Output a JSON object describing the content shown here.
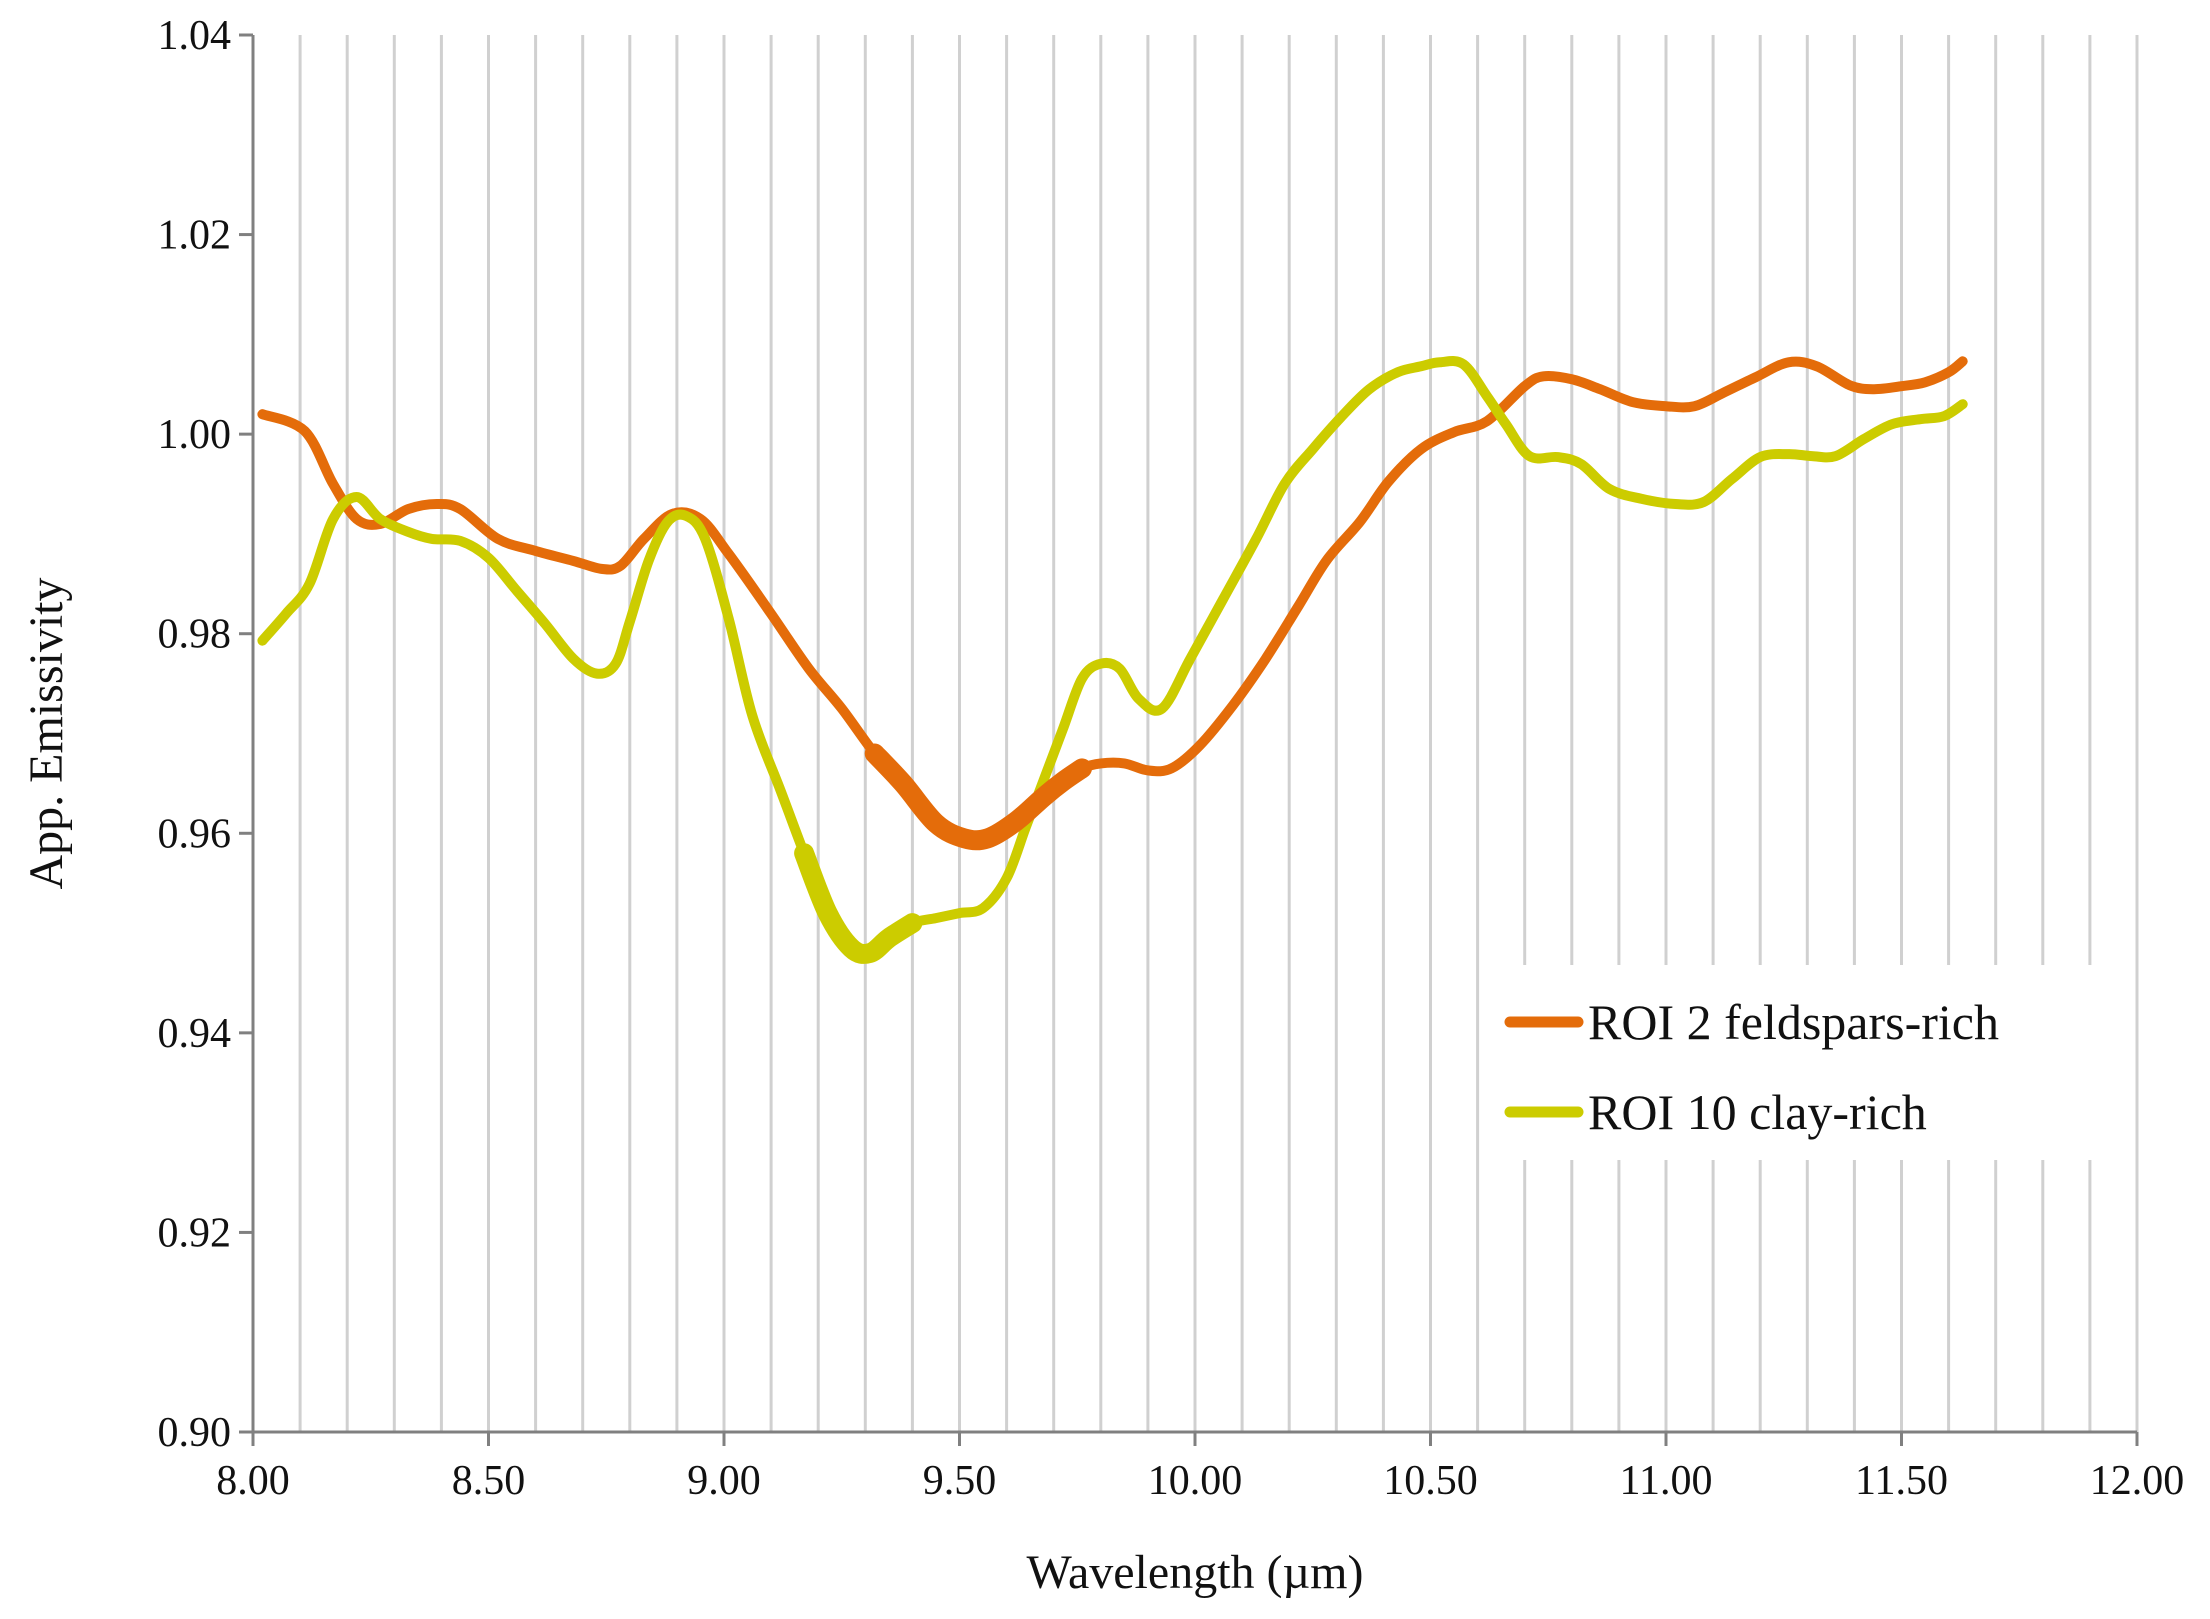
{
  "chart_data": {
    "type": "line",
    "title": "",
    "xlabel": "Wavelength (µm)",
    "ylabel": "App. Emissivity",
    "xlim": [
      8.0,
      12.0
    ],
    "ylim": [
      0.9,
      1.04
    ],
    "x_ticks": [
      "8.00",
      "8.50",
      "9.00",
      "9.50",
      "10.00",
      "10.50",
      "11.00",
      "11.50",
      "12.00"
    ],
    "y_ticks": [
      "0.90",
      "0.92",
      "0.94",
      "0.96",
      "0.98",
      "1.00",
      "1.02",
      "1.04"
    ],
    "x_tick_values": [
      8.0,
      8.5,
      9.0,
      9.5,
      10.0,
      10.5,
      11.0,
      11.5,
      12.0
    ],
    "y_tick_values": [
      0.9,
      0.92,
      0.94,
      0.96,
      0.98,
      1.0,
      1.02,
      1.04
    ],
    "x_gridlines_step": 0.1,
    "grid": "vertical",
    "legend_position": "right",
    "series": [
      {
        "name": "ROI 2 feldspars-rich",
        "color": "#E46C0A",
        "x": [
          8.02,
          8.11,
          8.17,
          8.22,
          8.27,
          8.33,
          8.39,
          8.44,
          8.52,
          8.6,
          8.68,
          8.74,
          8.78,
          8.83,
          8.89,
          8.95,
          9.01,
          9.1,
          9.18,
          9.25,
          9.32,
          9.38,
          9.45,
          9.51,
          9.56,
          9.62,
          9.68,
          9.72,
          9.76,
          9.8,
          9.85,
          9.9,
          9.95,
          10.01,
          10.08,
          10.15,
          10.22,
          10.28,
          10.35,
          10.41,
          10.48,
          10.55,
          10.62,
          10.7,
          10.74,
          10.8,
          10.86,
          10.93,
          11.0,
          11.06,
          11.12,
          11.19,
          11.26,
          11.32,
          11.39,
          11.44,
          11.5,
          11.55,
          11.6,
          11.63
        ],
        "y": [
          1.002,
          1.0003,
          0.995,
          0.9915,
          0.991,
          0.9925,
          0.993,
          0.9925,
          0.9895,
          0.9883,
          0.9873,
          0.9865,
          0.9868,
          0.9895,
          0.992,
          0.9915,
          0.988,
          0.982,
          0.9765,
          0.9725,
          0.968,
          0.965,
          0.961,
          0.9595,
          0.9595,
          0.9612,
          0.9637,
          0.9652,
          0.9665,
          0.967,
          0.967,
          0.9663,
          0.9665,
          0.9688,
          0.9728,
          0.9775,
          0.9828,
          0.9874,
          0.9912,
          0.9952,
          0.9985,
          1.0002,
          1.0013,
          1.0048,
          1.0058,
          1.0055,
          1.0045,
          1.0032,
          1.0028,
          1.0028,
          1.0041,
          1.0057,
          1.0072,
          1.0068,
          1.0049,
          1.0045,
          1.0048,
          1.0052,
          1.0062,
          1.0073
        ]
      },
      {
        "name": "ROI 10 clay-rich",
        "color": "#CCCC00",
        "x": [
          8.02,
          8.07,
          8.12,
          8.17,
          8.22,
          8.27,
          8.33,
          8.38,
          8.44,
          8.5,
          8.56,
          8.62,
          8.68,
          8.73,
          8.77,
          8.8,
          8.84,
          8.88,
          8.92,
          8.96,
          9.01,
          9.06,
          9.12,
          9.17,
          9.22,
          9.27,
          9.31,
          9.35,
          9.4,
          9.45,
          9.5,
          9.55,
          9.6,
          9.64,
          9.68,
          9.72,
          9.76,
          9.8,
          9.84,
          9.88,
          9.93,
          9.99,
          10.06,
          10.13,
          10.19,
          10.25,
          10.31,
          10.37,
          10.43,
          10.48,
          10.52,
          10.57,
          10.62,
          10.66,
          10.71,
          10.77,
          10.82,
          10.88,
          10.95,
          11.02,
          11.08,
          11.14,
          11.2,
          11.26,
          11.31,
          11.36,
          11.42,
          11.48,
          11.54,
          11.59,
          11.63
        ],
        "y": [
          0.9793,
          0.982,
          0.985,
          0.9915,
          0.9937,
          0.9915,
          0.9902,
          0.9895,
          0.9893,
          0.9876,
          0.9843,
          0.981,
          0.9775,
          0.976,
          0.977,
          0.9812,
          0.9873,
          0.9912,
          0.9918,
          0.9895,
          0.9815,
          0.9718,
          0.9643,
          0.958,
          0.952,
          0.9485,
          0.948,
          0.9495,
          0.951,
          0.9515,
          0.952,
          0.9525,
          0.9555,
          0.9605,
          0.9655,
          0.9705,
          0.9755,
          0.977,
          0.9765,
          0.9735,
          0.9725,
          0.9775,
          0.9835,
          0.9895,
          0.995,
          0.9985,
          1.0017,
          1.0045,
          1.0062,
          1.0068,
          1.0072,
          1.007,
          1.0038,
          1.001,
          0.9978,
          0.9977,
          0.997,
          0.9945,
          0.9935,
          0.993,
          0.9932,
          0.9955,
          0.9977,
          0.998,
          0.9978,
          0.9978,
          0.9995,
          1.001,
          1.0015,
          1.0018,
          1.003
        ]
      }
    ],
    "highlighted_segments": [
      {
        "series": 0,
        "x_range": [
          9.32,
          9.77
        ]
      },
      {
        "series": 1,
        "x_range": [
          9.16,
          9.44
        ]
      }
    ]
  }
}
